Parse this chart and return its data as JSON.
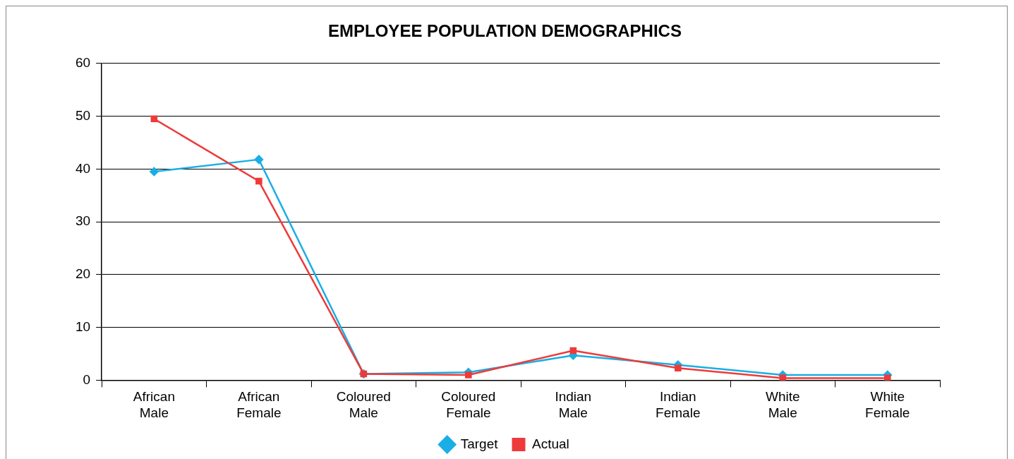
{
  "chart_data": {
    "type": "line",
    "title": "EMPLOYEE POPULATION DEMOGRAPHICS",
    "categories": [
      "African Male",
      "African Female",
      "Coloured Male",
      "Coloured Female",
      "Indian Male",
      "Indian Female",
      "White Male",
      "White Female"
    ],
    "series": [
      {
        "name": "Target",
        "color": "#1aaee5",
        "marker": "diamond",
        "values": [
          39.5,
          41.8,
          1.2,
          1.5,
          4.7,
          2.9,
          1.0,
          1.0
        ]
      },
      {
        "name": "Actual",
        "color": "#ee3a3a",
        "marker": "square",
        "values": [
          49.5,
          37.7,
          1.2,
          1.0,
          5.6,
          2.3,
          0.4,
          0.4
        ]
      }
    ],
    "ylim": [
      0,
      60
    ],
    "yticks": [
      0,
      10,
      20,
      30,
      40,
      50,
      60
    ],
    "grid": "y",
    "legend": "bottom",
    "line_style": "solid"
  }
}
